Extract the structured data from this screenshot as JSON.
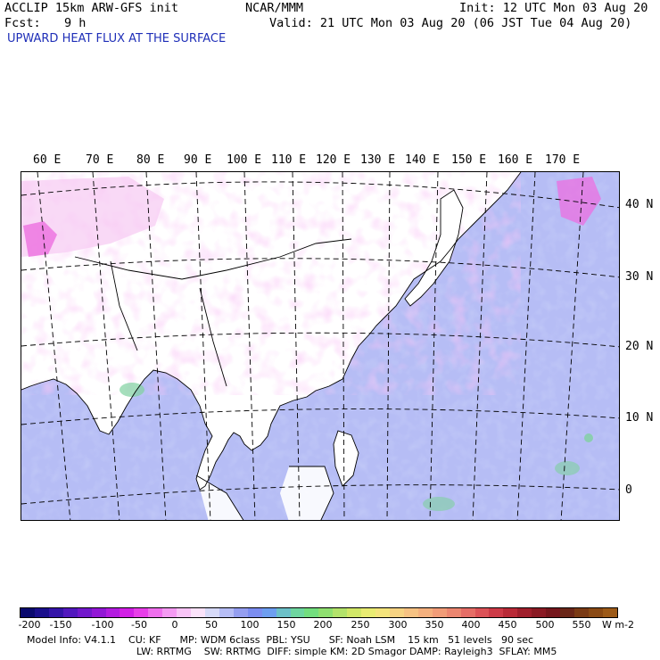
{
  "header": {
    "model": "ACCLIP 15km ARW-GFS init",
    "org": "NCAR/MMM",
    "init": "Init: 12 UTC Mon 03 Aug 20",
    "fcst_label": "Fcst:",
    "fcst_value": "9 h",
    "valid": "Valid: 21 UTC Mon 03 Aug 20 (06 JST Tue 04 Aug 20)",
    "field": "UPWARD HEAT FLUX AT THE SURFACE"
  },
  "map": {
    "lon_labels": [
      "60 E",
      "70 E",
      "80 E",
      "90 E",
      "100 E",
      "110 E",
      "120 E",
      "130 E",
      "140 E",
      "150 E",
      "160 E",
      "170 E"
    ],
    "lat_labels": [
      "40 N",
      "30 N",
      "20 N",
      "10 N",
      "0"
    ],
    "colors": {
      "land_low": "#ffffff",
      "land_neg": "#f7c9f2",
      "land_neg_strong": "#ec6fe0",
      "ocean": "#b6bdf5",
      "ocean_mid": "#949ef0",
      "ocean_high": "#7fd1a0",
      "grid": "#000000",
      "coast": "#000000"
    }
  },
  "colorbar": {
    "ticks": [
      "-200",
      "-150",
      "-100",
      "-50",
      "0",
      "50",
      "100",
      "150",
      "200",
      "250",
      "300",
      "350",
      "400",
      "450",
      "500",
      "550"
    ],
    "units": "W m-2",
    "colors": [
      "#0a0a6e",
      "#1a0f8c",
      "#3414a8",
      "#5218be",
      "#7218cc",
      "#9217d6",
      "#b31ce0",
      "#d21fe6",
      "#e83ee9",
      "#ef6fed",
      "#f49af2",
      "#f8c4f6",
      "#fbe3fa",
      "#d7daf8",
      "#b6bdf5",
      "#949ef0",
      "#7b8df0",
      "#6d9ef0",
      "#6cc0c8",
      "#6ed6a0",
      "#72de7e",
      "#8fe070",
      "#b3e36b",
      "#d2e868",
      "#e9ec72",
      "#f4e47c",
      "#f6d383",
      "#f6c283",
      "#f4b07e",
      "#f19c78",
      "#ec8670",
      "#e56d66",
      "#dc5257",
      "#cd3a47",
      "#b92a37",
      "#a01f2c",
      "#8a1a24",
      "#75161c",
      "#6a2618",
      "#7a3a14",
      "#8a4a14",
      "#9c5a18"
    ]
  },
  "footer": {
    "line1": "Model Info: V4.1.1    CU: KF      MP: WDM 6class  PBL: YSU      SF: Noah LSM    15 km   51 levels   90 sec",
    "line2": "LW: RRTMG    SW: RRTMG  DIFF: simple KM: 2D Smagor DAMP: Rayleigh3  SFLAY: MM5"
  }
}
